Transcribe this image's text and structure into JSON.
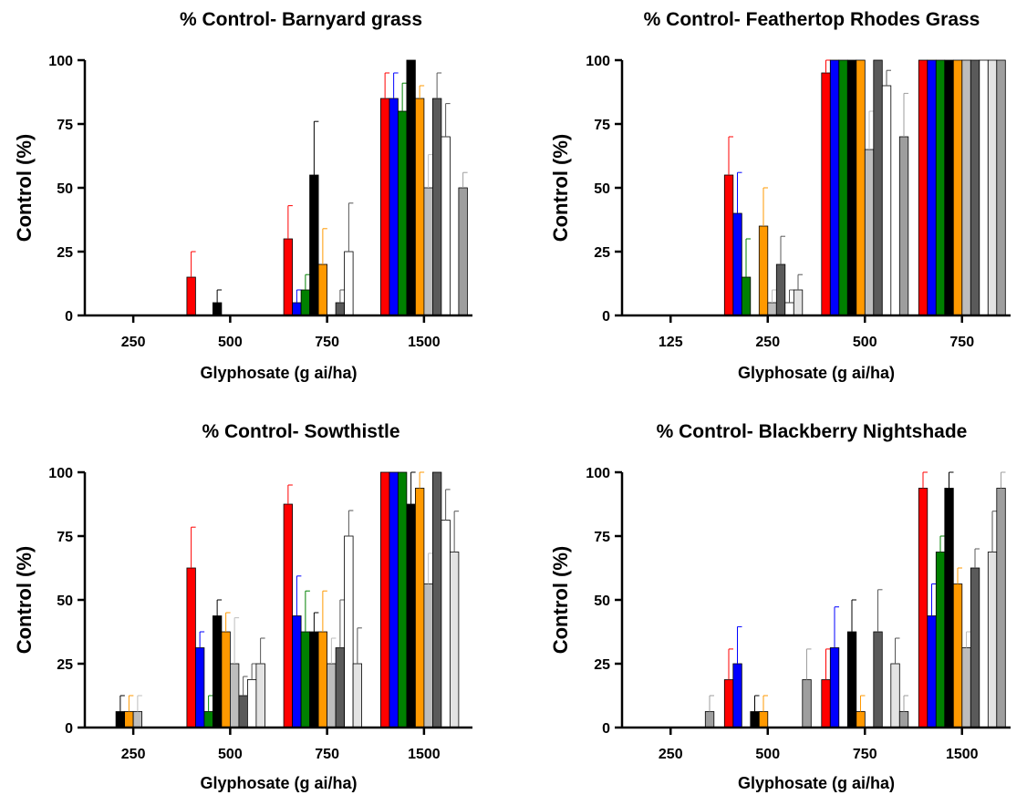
{
  "colors": [
    "#ff0000",
    "#0000ff",
    "#008000",
    "#000000",
    "#ff9900",
    "#bdbdbd",
    "#5a5a5a",
    "#ffffff",
    "#e3e3e3",
    "#9e9e9e"
  ],
  "chart_data": [
    {
      "type": "bar",
      "title": "% Control- Barnyard grass",
      "xlabel": "Glyphosate (g ai/ha)",
      "ylabel": "Control (%)",
      "ylim": [
        0,
        100
      ],
      "yticks": [
        "0",
        "25",
        "50",
        "75",
        "100"
      ],
      "categories": [
        "250",
        "500",
        "750",
        "1500"
      ],
      "series": [
        {
          "values": [
            0,
            15,
            30,
            85
          ],
          "errors": [
            0,
            10,
            13,
            10
          ]
        },
        {
          "values": [
            0,
            0,
            5,
            85
          ],
          "errors": [
            0,
            0,
            5,
            10
          ]
        },
        {
          "values": [
            0,
            0,
            10,
            80
          ],
          "errors": [
            0,
            0,
            6,
            11
          ]
        },
        {
          "values": [
            0,
            5,
            55,
            100
          ],
          "errors": [
            0,
            5,
            21,
            0
          ]
        },
        {
          "values": [
            0,
            0,
            20,
            85
          ],
          "errors": [
            0,
            0,
            14,
            5
          ]
        },
        {
          "values": [
            0,
            0,
            0,
            50
          ],
          "errors": [
            0,
            0,
            0,
            13
          ]
        },
        {
          "values": [
            0,
            0,
            5,
            85
          ],
          "errors": [
            0,
            0,
            5,
            10
          ]
        },
        {
          "values": [
            0,
            0,
            25,
            70
          ],
          "errors": [
            0,
            0,
            19,
            13
          ]
        },
        {
          "values": [
            0,
            0,
            0,
            0
          ],
          "errors": [
            0,
            0,
            0,
            0
          ]
        },
        {
          "values": [
            0,
            0,
            0,
            50
          ],
          "errors": [
            0,
            0,
            0,
            6
          ]
        }
      ]
    },
    {
      "type": "bar",
      "title": "% Control- Feathertop Rhodes Grass",
      "xlabel": "Glyphosate (g ai/ha)",
      "ylabel": "Control (%)",
      "ylim": [
        0,
        100
      ],
      "yticks": [
        "0",
        "25",
        "50",
        "75",
        "100"
      ],
      "categories": [
        "125",
        "250",
        "500",
        "750"
      ],
      "series": [
        {
          "values": [
            0,
            55,
            95,
            100
          ],
          "errors": [
            0,
            15,
            5,
            0
          ]
        },
        {
          "values": [
            0,
            40,
            100,
            100
          ],
          "errors": [
            0,
            16,
            0,
            0
          ]
        },
        {
          "values": [
            0,
            15,
            100,
            100
          ],
          "errors": [
            0,
            15,
            0,
            0
          ]
        },
        {
          "values": [
            0,
            0,
            100,
            100
          ],
          "errors": [
            0,
            0,
            0,
            0
          ]
        },
        {
          "values": [
            0,
            35,
            100,
            100
          ],
          "errors": [
            0,
            15,
            0,
            0
          ]
        },
        {
          "values": [
            0,
            5,
            65,
            100
          ],
          "errors": [
            0,
            5,
            15,
            0
          ]
        },
        {
          "values": [
            0,
            20,
            100,
            100
          ],
          "errors": [
            0,
            11,
            0,
            0
          ]
        },
        {
          "values": [
            0,
            5,
            90,
            100
          ],
          "errors": [
            0,
            5,
            6,
            0
          ]
        },
        {
          "values": [
            0,
            10,
            0,
            100
          ],
          "errors": [
            0,
            6,
            0,
            0
          ]
        },
        {
          "values": [
            0,
            0,
            70,
            100
          ],
          "errors": [
            0,
            0,
            17,
            0
          ]
        }
      ]
    },
    {
      "type": "bar",
      "title": "% Control- Sowthistle",
      "xlabel": "Glyphosate (g ai/ha)",
      "ylabel": "Control (%)",
      "ylim": [
        0,
        100
      ],
      "yticks": [
        "0",
        "25",
        "50",
        "75",
        "100"
      ],
      "categories": [
        "250",
        "500",
        "750",
        "1500"
      ],
      "series": [
        {
          "values": [
            0,
            62.5,
            87.5,
            100
          ],
          "errors": [
            0,
            16,
            7.5,
            0
          ]
        },
        {
          "values": [
            0,
            31.25,
            43.75,
            100
          ],
          "errors": [
            0,
            6.25,
            15.6,
            0
          ]
        },
        {
          "values": [
            0,
            6.25,
            37.5,
            100
          ],
          "errors": [
            0,
            6.25,
            16,
            0
          ]
        },
        {
          "values": [
            6.25,
            43.75,
            37.5,
            87.5
          ],
          "errors": [
            6.25,
            6.25,
            7.5,
            12.5
          ]
        },
        {
          "values": [
            6.25,
            37.5,
            37.5,
            93.75
          ],
          "errors": [
            6.25,
            7.5,
            16,
            6.25
          ]
        },
        {
          "values": [
            6.25,
            25,
            25,
            56.25
          ],
          "errors": [
            6.25,
            18,
            10,
            12
          ]
        },
        {
          "values": [
            0,
            12.5,
            31.25,
            100
          ],
          "errors": [
            0,
            7.5,
            18.75,
            0
          ]
        },
        {
          "values": [
            0,
            18.75,
            75,
            81.25
          ],
          "errors": [
            0,
            6.25,
            10,
            12
          ]
        },
        {
          "values": [
            0,
            25,
            25,
            68.75
          ],
          "errors": [
            0,
            10,
            14,
            16
          ]
        },
        {
          "values": [
            0,
            0,
            0,
            0
          ],
          "errors": [
            0,
            0,
            0,
            0
          ]
        }
      ]
    },
    {
      "type": "bar",
      "title": "% Control- Blackberry Nightshade",
      "xlabel": "Glyphosate (g ai/ha)",
      "ylabel": "Control  (%)",
      "ylim": [
        0,
        100
      ],
      "yticks": [
        "0",
        "25",
        "50",
        "75",
        "100"
      ],
      "categories": [
        "250",
        "500",
        "750",
        "1500"
      ],
      "series": [
        {
          "values": [
            0,
            18.75,
            18.75,
            93.75
          ],
          "errors": [
            0,
            12,
            12,
            6.25
          ]
        },
        {
          "values": [
            0,
            25,
            31.25,
            43.75
          ],
          "errors": [
            0,
            14.5,
            16,
            12.5
          ]
        },
        {
          "values": [
            0,
            0,
            0,
            68.75
          ],
          "errors": [
            0,
            0,
            0,
            6.25
          ]
        },
        {
          "values": [
            0,
            6.25,
            37.5,
            93.75
          ],
          "errors": [
            0,
            6.25,
            12.5,
            6.25
          ]
        },
        {
          "values": [
            0,
            6.25,
            6.25,
            56.25
          ],
          "errors": [
            0,
            6.25,
            6.25,
            6.25
          ]
        },
        {
          "values": [
            0,
            0,
            0,
            31.25
          ],
          "errors": [
            0,
            0,
            0,
            6.25
          ]
        },
        {
          "values": [
            0,
            0,
            37.5,
            62.5
          ],
          "errors": [
            0,
            0,
            16.5,
            7.5
          ]
        },
        {
          "values": [
            0,
            0,
            0,
            0
          ],
          "errors": [
            0,
            0,
            0,
            0
          ]
        },
        {
          "values": [
            0,
            0,
            25,
            68.75
          ],
          "errors": [
            0,
            0,
            10,
            16
          ]
        },
        {
          "values": [
            6.25,
            18.75,
            6.25,
            93.75
          ],
          "errors": [
            6.25,
            12,
            6.25,
            6.25
          ]
        }
      ]
    }
  ]
}
